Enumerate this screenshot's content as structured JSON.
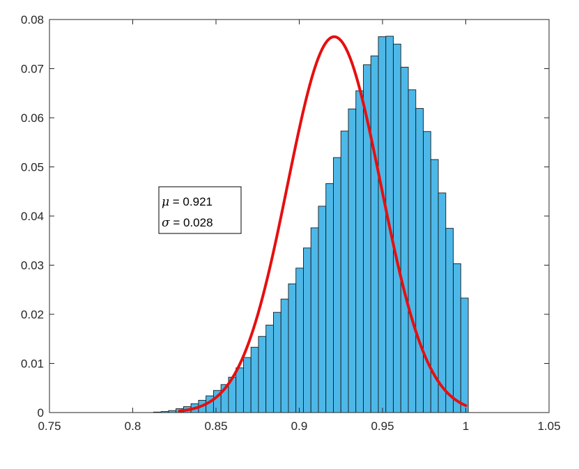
{
  "chart_data": {
    "type": "bar",
    "title": "",
    "xlabel": "",
    "ylabel": "",
    "xlim": [
      0.75,
      1.05
    ],
    "ylim": [
      0,
      0.08
    ],
    "xticks": [
      "0.75",
      "0.8",
      "0.85",
      "0.9",
      "0.95",
      "1",
      "1.05"
    ],
    "yticks": [
      "0",
      "0.01",
      "0.02",
      "0.03",
      "0.04",
      "0.05",
      "0.06",
      "0.07",
      "0.08"
    ],
    "grid": false,
    "bar_color": "#4db8e8",
    "bar_edge_color": "#1a1a1a",
    "fit_color": "#e60f0f",
    "histogram": {
      "bin_edges": [
        0.8125,
        0.817,
        0.8215,
        0.826,
        0.8305,
        0.835,
        0.8395,
        0.844,
        0.8485,
        0.853,
        0.8575,
        0.862,
        0.8665,
        0.871,
        0.8755,
        0.88,
        0.8845,
        0.889,
        0.8935,
        0.898,
        0.9025,
        0.907,
        0.9115,
        0.916,
        0.9205,
        0.925,
        0.9295,
        0.934,
        0.9385,
        0.943,
        0.9475,
        0.952,
        0.9565,
        0.961,
        0.9655,
        0.97,
        0.9745,
        0.979,
        0.9835,
        0.988,
        0.9925,
        0.997,
        1.0015
      ],
      "values": [
        0.0001,
        0.0002,
        0.0004,
        0.0008,
        0.0012,
        0.0018,
        0.0025,
        0.0034,
        0.0045,
        0.0057,
        0.0072,
        0.0091,
        0.0112,
        0.0133,
        0.0155,
        0.0178,
        0.0204,
        0.0231,
        0.0262,
        0.0294,
        0.0335,
        0.0376,
        0.042,
        0.0466,
        0.0519,
        0.0573,
        0.0618,
        0.0655,
        0.0708,
        0.0726,
        0.0765,
        0.0766,
        0.075,
        0.0703,
        0.0657,
        0.0619,
        0.0572,
        0.0515,
        0.0447,
        0.0375,
        0.0303,
        0.0233
      ]
    },
    "fit": {
      "type": "normal",
      "mu": 0.921,
      "sigma": 0.028,
      "peak": 0.0765,
      "x_range": [
        0.828,
        1.0
      ]
    },
    "annotation": {
      "lines": [
        {
          "symbol": "μ",
          "text": " = 0.921"
        },
        {
          "symbol": "σ",
          "text": " = 0.028"
        }
      ]
    }
  }
}
